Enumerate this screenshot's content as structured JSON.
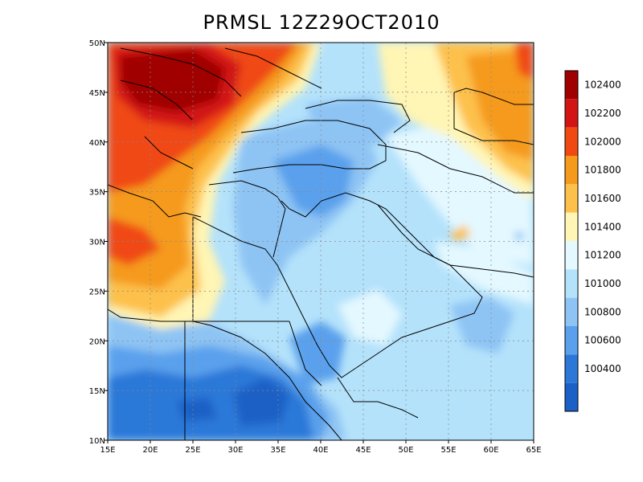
{
  "title": "PRMSL 12Z29OCT2010",
  "map": {
    "lon_range": [
      15,
      65
    ],
    "lat_range": [
      10,
      50
    ],
    "lon_ticks": [
      "15E",
      "20E",
      "25E",
      "30E",
      "35E",
      "40E",
      "45E",
      "50E",
      "55E",
      "60E",
      "65E"
    ],
    "lat_ticks": [
      "10N",
      "15N",
      "20N",
      "25N",
      "30N",
      "35N",
      "40N",
      "45N",
      "50N"
    ],
    "grid": true
  },
  "colorbar": {
    "levels": [
      {
        "label": "102400",
        "color": "#a00000"
      },
      {
        "label": "102200",
        "color": "#d21414"
      },
      {
        "label": "102000",
        "color": "#f04a12"
      },
      {
        "label": "101800",
        "color": "#f59a1c"
      },
      {
        "label": "101600",
        "color": "#fdc14b"
      },
      {
        "label": "101400",
        "color": "#fff5b4"
      },
      {
        "label": "101200",
        "color": "#e4f8ff"
      },
      {
        "label": "101000",
        "color": "#b4e2fb"
      },
      {
        "label": "100800",
        "color": "#8ec4f4"
      },
      {
        "label": "100600",
        "color": "#5aa0ec"
      },
      {
        "label": "100400",
        "color": "#2c78d8"
      }
    ],
    "bottom_color": "#1b60c6"
  }
}
